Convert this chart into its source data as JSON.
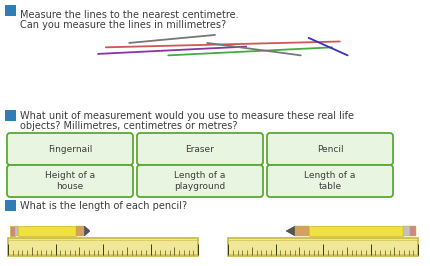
{
  "bg_color": "#ffffff",
  "icon_color": "#2e7eb5",
  "text_color": "#3d3d3d",
  "q1_line1": "Measure the lines to the nearest centimetre.",
  "q1_line2": "Can you measure the lines in millimetres?",
  "q2_line1": "What unit of measurement would you use to measure these real life",
  "q2_line2": "objects? Millimetres, centimetres or metres?",
  "q3_text": "What is the length of each pencil?",
  "lines": [
    {
      "x": [
        0.28,
        0.5
      ],
      "y": [
        0.85,
        0.96
      ],
      "color": "#777777",
      "lw": 1.3
    },
    {
      "x": [
        0.22,
        0.82
      ],
      "y": [
        0.79,
        0.87
      ],
      "color": "#d05555",
      "lw": 1.3
    },
    {
      "x": [
        0.2,
        0.58
      ],
      "y": [
        0.7,
        0.8
      ],
      "color": "#8833aa",
      "lw": 1.3
    },
    {
      "x": [
        0.38,
        0.8
      ],
      "y": [
        0.68,
        0.79
      ],
      "color": "#44aa44",
      "lw": 1.3
    },
    {
      "x": [
        0.48,
        0.72
      ],
      "y": [
        0.85,
        0.68
      ],
      "color": "#777777",
      "lw": 1.3
    },
    {
      "x": [
        0.74,
        0.84
      ],
      "y": [
        0.92,
        0.68
      ],
      "color": "#3333bb",
      "lw": 1.3
    }
  ],
  "boxes": [
    {
      "label": "Fingernail",
      "col": 0,
      "row": 0
    },
    {
      "label": "Eraser",
      "col": 1,
      "row": 0
    },
    {
      "label": "Pencil",
      "col": 2,
      "row": 0
    },
    {
      "label": "Height of a\nhouse",
      "col": 0,
      "row": 1
    },
    {
      "label": "Length of a\nplayground",
      "col": 1,
      "row": 1
    },
    {
      "label": "Length of a\ntable",
      "col": 2,
      "row": 1
    }
  ],
  "box_bg": "#e8f5e0",
  "box_edge": "#5aaa30",
  "ruler_bg": "#f0e898",
  "ruler_edge": "#c8b840",
  "ruler_dot_color": "#3a3a00",
  "pencil_yellow": "#f0e040",
  "pencil_yellow_dark": "#c8b820",
  "pencil_wood": "#d4a060",
  "pencil_tip": "#555555",
  "pencil_band": "#c0c0c0",
  "pencil_eraser": "#cc8888"
}
